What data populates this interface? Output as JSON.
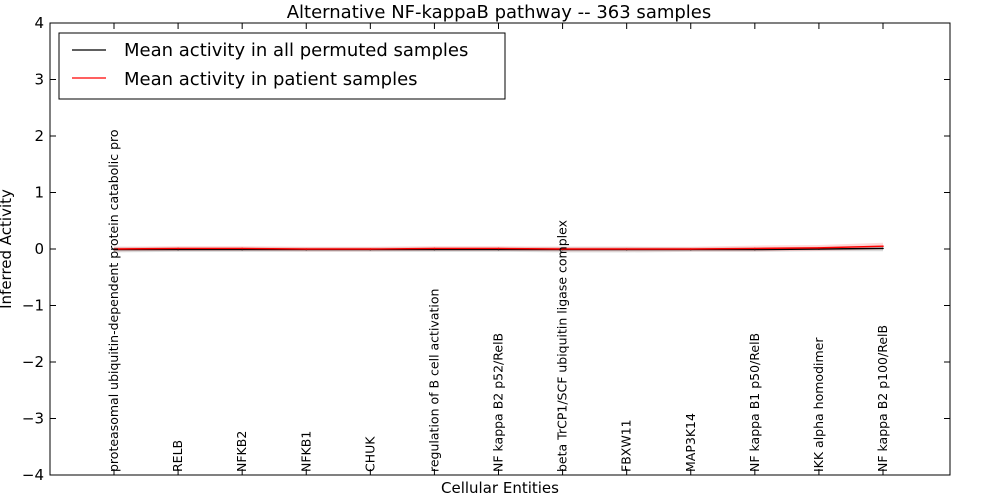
{
  "chart_data": {
    "type": "line",
    "title": "Alternative NF-kappaB pathway -- 363 samples",
    "xlabel": "Cellular Entities",
    "ylabel": "Inferred Activity",
    "ylim": [
      -4,
      4
    ],
    "yticks": [
      "−4",
      "−3",
      "−2",
      "−1",
      "0",
      "1",
      "2",
      "3",
      "4"
    ],
    "grid": false,
    "legend_position": "top-left",
    "categories": [
      "proteasomal ubiquitin-dependent protein catabolic pro",
      "RELB",
      "NFKB2",
      "NFKB1",
      "CHUK",
      "regulation of B cell activation",
      "NF kappa B2 p52/RelB",
      "beta TrCP1/SCF ubiquitin ligase complex",
      "FBXW11",
      "MAP3K14",
      "NF kappa B1 p50/RelB",
      "IKK alpha homodimer",
      "NF kappa B2 p100/RelB"
    ],
    "series": [
      {
        "name": "Mean activity in all permuted samples",
        "color": "#000000",
        "values": [
          -0.01,
          -0.01,
          -0.01,
          -0.01,
          -0.01,
          -0.01,
          -0.01,
          -0.01,
          -0.01,
          -0.01,
          -0.01,
          0.0,
          0.01
        ],
        "band": [
          0.05,
          0.04,
          0.04,
          0.04,
          0.04,
          0.04,
          0.04,
          0.05,
          0.05,
          0.04,
          0.04,
          0.04,
          0.05
        ]
      },
      {
        "name": "Mean activity in patient samples",
        "color": "#ff0000",
        "values": [
          0.0,
          0.01,
          0.01,
          0.0,
          0.0,
          0.01,
          0.01,
          0.0,
          0.0,
          0.0,
          0.01,
          0.02,
          0.05
        ],
        "band": [
          0.04,
          0.04,
          0.04,
          0.04,
          0.04,
          0.04,
          0.04,
          0.04,
          0.04,
          0.04,
          0.05,
          0.05,
          0.06
        ]
      }
    ]
  }
}
